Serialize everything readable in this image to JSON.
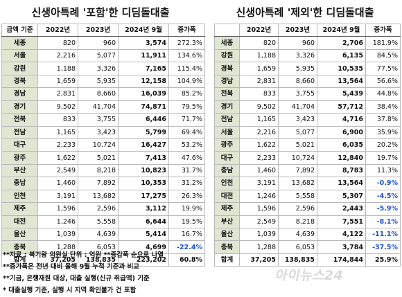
{
  "titles": {
    "left": "신생아특례 '포함'한 디딤돌대출",
    "right": "신생아특례 '제외'한 디딤돌대출"
  },
  "left_table": {
    "headers": [
      "금액 기준",
      "2022년",
      "2023년",
      "2024년 9월",
      "증가폭"
    ],
    "rows": [
      {
        "region": "세종",
        "y2022": "820",
        "y2023": "960",
        "y2024": "3,574",
        "growth": "272.3%",
        "neg": false
      },
      {
        "region": "서울",
        "y2022": "2,216",
        "y2023": "5,077",
        "y2024": "11,911",
        "growth": "134.6%",
        "neg": false
      },
      {
        "region": "강원",
        "y2022": "1,188",
        "y2023": "3,326",
        "y2024": "7,165",
        "growth": "115.4%",
        "neg": false
      },
      {
        "region": "경북",
        "y2022": "1,659",
        "y2023": "5,935",
        "y2024": "12,158",
        "growth": "104.9%",
        "neg": false
      },
      {
        "region": "경남",
        "y2022": "2,831",
        "y2023": "8,660",
        "y2024": "16,039",
        "growth": "85.2%",
        "neg": false
      },
      {
        "region": "경기",
        "y2022": "9,502",
        "y2023": "41,704",
        "y2024": "74,871",
        "growth": "79.5%",
        "neg": false
      },
      {
        "region": "전북",
        "y2022": "833",
        "y2023": "3,755",
        "y2024": "6,446",
        "growth": "71.7%",
        "neg": false
      },
      {
        "region": "전남",
        "y2022": "1,165",
        "y2023": "3,423",
        "y2024": "5,799",
        "growth": "69.4%",
        "neg": false
      },
      {
        "region": "대구",
        "y2022": "2,233",
        "y2023": "10,724",
        "y2024": "16,427",
        "growth": "53.2%",
        "neg": false
      },
      {
        "region": "광주",
        "y2022": "1,622",
        "y2023": "5,021",
        "y2024": "7,413",
        "growth": "47.6%",
        "neg": false
      },
      {
        "region": "부산",
        "y2022": "2,549",
        "y2023": "8,218",
        "y2024": "10,823",
        "growth": "31.7%",
        "neg": false
      },
      {
        "region": "충남",
        "y2022": "1,460",
        "y2023": "7,892",
        "y2024": "10,353",
        "growth": "31.2%",
        "neg": false
      },
      {
        "region": "인천",
        "y2022": "3,191",
        "y2023": "13,682",
        "y2024": "17,275",
        "growth": "26.3%",
        "neg": false
      },
      {
        "region": "제주",
        "y2022": "1,596",
        "y2023": "2,596",
        "y2024": "3,112",
        "growth": "19.9%",
        "neg": false
      },
      {
        "region": "대전",
        "y2022": "1,246",
        "y2023": "5,558",
        "y2024": "6,644",
        "growth": "19.5%",
        "neg": false
      },
      {
        "region": "울산",
        "y2022": "1,039",
        "y2023": "4,639",
        "y2024": "5,414",
        "growth": "16.7%",
        "neg": false
      },
      {
        "region": "충북",
        "y2022": "1,288",
        "y2023": "6,053",
        "y2024": "4,699",
        "growth": "-22.4%",
        "neg": true
      }
    ],
    "total": {
      "region": "합계",
      "y2022": "37,205",
      "y2023": "138,835",
      "y2024": "223,202",
      "growth": "60.8%"
    }
  },
  "right_table": {
    "headers": [
      "",
      "2022년",
      "2023년",
      "2024년 9월",
      "증가폭"
    ],
    "rows": [
      {
        "region": "세종",
        "y2022": "820",
        "y2023": "960",
        "y2024": "2,706",
        "growth": "181.9%",
        "neg": false
      },
      {
        "region": "강원",
        "y2022": "1,188",
        "y2023": "3,326",
        "y2024": "6,135",
        "growth": "84.5%",
        "neg": false
      },
      {
        "region": "경북",
        "y2022": "1,659",
        "y2023": "5,935",
        "y2024": "10,535",
        "growth": "77.5%",
        "neg": false
      },
      {
        "region": "경남",
        "y2022": "2,831",
        "y2023": "8,660",
        "y2024": "13,564",
        "growth": "56.6%",
        "neg": false
      },
      {
        "region": "전북",
        "y2022": "833",
        "y2023": "3,755",
        "y2024": "5,439",
        "growth": "44.8%",
        "neg": false
      },
      {
        "region": "경기",
        "y2022": "9,502",
        "y2023": "41,704",
        "y2024": "57,712",
        "growth": "38.4%",
        "neg": false
      },
      {
        "region": "전남",
        "y2022": "1,165",
        "y2023": "3,423",
        "y2024": "4,716",
        "growth": "37.8%",
        "neg": false
      },
      {
        "region": "서울",
        "y2022": "2,216",
        "y2023": "5,077",
        "y2024": "6,900",
        "growth": "35.9%",
        "neg": false
      },
      {
        "region": "광주",
        "y2022": "1,622",
        "y2023": "5,021",
        "y2024": "6,035",
        "growth": "20.2%",
        "neg": false
      },
      {
        "region": "대구",
        "y2022": "2,233",
        "y2023": "10,724",
        "y2024": "12,840",
        "growth": "19.7%",
        "neg": false
      },
      {
        "region": "충남",
        "y2022": "1,460",
        "y2023": "7,892",
        "y2024": "8,783",
        "growth": "11.3%",
        "neg": false
      },
      {
        "region": "인천",
        "y2022": "3,191",
        "y2023": "13,682",
        "y2024": "13,564",
        "growth": "-0.9%",
        "neg": true
      },
      {
        "region": "대전",
        "y2022": "1,246",
        "y2023": "5,558",
        "y2024": "5,307",
        "growth": "-4.5%",
        "neg": true
      },
      {
        "region": "제주",
        "y2022": "1,596",
        "y2023": "2,596",
        "y2024": "2,443",
        "growth": "-5.9%",
        "neg": true
      },
      {
        "region": "부산",
        "y2022": "2,549",
        "y2023": "8,218",
        "y2024": "7,551",
        "growth": "-8.1%",
        "neg": true
      },
      {
        "region": "울산",
        "y2022": "1,039",
        "y2023": "4,639",
        "y2024": "4,122",
        "growth": "-11.1%",
        "neg": true
      },
      {
        "region": "충북",
        "y2022": "1,288",
        "y2023": "6,053",
        "y2024": "3,784",
        "growth": "-37.5%",
        "neg": true
      }
    ],
    "total": {
      "region": "합계",
      "y2022": "37,205",
      "y2023": "138,835",
      "y2024": "174,844",
      "growth": "25.9%"
    }
  },
  "notes": [
    "**자료 : 복기왕 의원실 단위 : 억원   **증감폭 순으로 나열",
    "**증가폭은 전년 대비 올해 9월 누적 기준과 비교",
    "**기금, 은행재원 대상, 대출 실행(신규 취급액) 기준",
    "* 대출실행 기준, 실행 시 지역 확인불가 건 포함"
  ],
  "watermark": "아이뉴스24"
}
